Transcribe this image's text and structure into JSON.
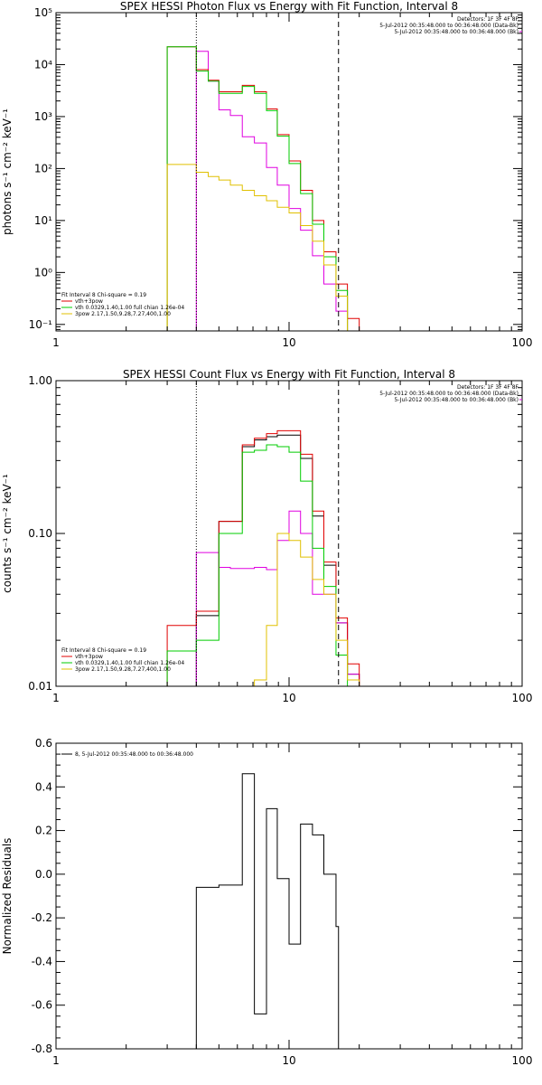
{
  "chart_data": [
    {
      "id": "photon",
      "type": "line",
      "title": "SPEX HESSI Photon Flux vs Energy with Fit Function, Interval 8",
      "xlabel": "",
      "ylabel": "photons s⁻¹ cm⁻² keV⁻¹",
      "xscale": "log",
      "yscale": "log",
      "xlim": [
        1,
        100
      ],
      "ylim": [
        0.075,
        100000
      ],
      "xticks": [
        {
          "v": 1,
          "label": "1"
        },
        {
          "v": 10,
          "label": "10"
        },
        {
          "v": 100,
          "label": "100"
        }
      ],
      "yticks": [
        {
          "v": 0.1,
          "label": "10⁻¹"
        },
        {
          "v": 1,
          "label": "10⁰"
        },
        {
          "v": 10,
          "label": "10¹"
        },
        {
          "v": 100,
          "label": "10²"
        },
        {
          "v": 1000,
          "label": "10³"
        },
        {
          "v": 10000,
          "label": "10⁴"
        },
        {
          "v": 100000,
          "label": "10⁵"
        }
      ],
      "vlines": [
        {
          "x": 4.0,
          "style": "dotted",
          "color": "#000000"
        },
        {
          "x": 16.3,
          "style": "dashed",
          "color": "#000000"
        }
      ],
      "info_lines": [
        "Detectors: 1F 3F 4F 8F",
        "5-Jul-2012 00:35:48.000 to 00:36:48.000 (Data-Bk)",
        "5-Jul-2012 00:35:48.000 to 00:36:48.000 (Bk)"
      ],
      "legend_lines": [
        {
          "text": "Fit Interval 8   Chi-square = 0.19",
          "color": null
        },
        {
          "text": "vth+3pow",
          "color": "#e00000"
        },
        {
          "text": "vth 0.0329,1.40,1.00  full chian 1.26e-04",
          "color": "#00cc00"
        },
        {
          "text": "3pow 2.17,1.50,9.28,7.27,400,1.00",
          "color": "#e0c000"
        }
      ],
      "series": [
        {
          "name": "",
          "color": "#e000e0",
          "bins": [
            [
              4.0,
              4.5,
              18000
            ],
            [
              4.5,
              5.0,
              4800
            ],
            [
              5.0,
              5.6,
              1350
            ],
            [
              5.6,
              6.3,
              1050
            ],
            [
              6.3,
              7.1,
              410
            ],
            [
              7.1,
              8.0,
              310
            ],
            [
              8.0,
              8.9,
              105
            ],
            [
              8.9,
              10.0,
              48
            ],
            [
              10.0,
              11.2,
              17
            ],
            [
              11.2,
              12.6,
              6.5
            ],
            [
              12.6,
              14.1,
              2.1
            ],
            [
              14.1,
              15.9,
              0.6
            ],
            [
              15.9,
              17.8,
              0.18
            ]
          ]
        },
        {
          "name": "vth+3pow",
          "color": "#e00000",
          "bins": [
            [
              3.0,
              4.0,
              22000
            ],
            [
              4.0,
              4.5,
              8000
            ],
            [
              4.5,
              5.0,
              5000
            ],
            [
              5.0,
              5.6,
              3000
            ],
            [
              5.6,
              6.3,
              3000
            ],
            [
              6.3,
              7.1,
              4000
            ],
            [
              7.1,
              8.0,
              3000
            ],
            [
              8.0,
              8.9,
              1400
            ],
            [
              8.9,
              10.0,
              450
            ],
            [
              10.0,
              11.2,
              140
            ],
            [
              11.2,
              12.6,
              38
            ],
            [
              12.6,
              14.1,
              10
            ],
            [
              14.1,
              15.9,
              2.5
            ],
            [
              15.9,
              17.8,
              0.6
            ],
            [
              17.8,
              20.0,
              0.13
            ]
          ]
        },
        {
          "name": "vth",
          "color": "#00cc00",
          "bins": [
            [
              3.0,
              4.0,
              22000
            ],
            [
              4.0,
              4.5,
              7500
            ],
            [
              4.5,
              5.0,
              4800
            ],
            [
              5.0,
              5.6,
              2800
            ],
            [
              5.6,
              6.3,
              2800
            ],
            [
              6.3,
              7.1,
              3800
            ],
            [
              7.1,
              8.0,
              2800
            ],
            [
              8.0,
              8.9,
              1300
            ],
            [
              8.9,
              10.0,
              420
            ],
            [
              10.0,
              11.2,
              125
            ],
            [
              11.2,
              12.6,
              33
            ],
            [
              12.6,
              14.1,
              8.5
            ],
            [
              14.1,
              15.9,
              2.0
            ],
            [
              15.9,
              17.8,
              0.45
            ]
          ]
        },
        {
          "name": "3pow",
          "color": "#e0c000",
          "bins": [
            [
              3.0,
              4.0,
              120
            ],
            [
              4.0,
              4.5,
              85
            ],
            [
              4.5,
              5.0,
              70
            ],
            [
              5.0,
              5.6,
              60
            ],
            [
              5.6,
              6.3,
              48
            ],
            [
              6.3,
              7.1,
              38
            ],
            [
              7.1,
              8.0,
              30
            ],
            [
              8.0,
              8.9,
              24
            ],
            [
              8.9,
              10.0,
              18
            ],
            [
              10.0,
              11.2,
              14
            ],
            [
              11.2,
              12.6,
              8
            ],
            [
              12.6,
              14.1,
              4
            ],
            [
              14.1,
              15.9,
              1.4
            ],
            [
              15.9,
              17.8,
              0.35
            ]
          ]
        }
      ]
    },
    {
      "id": "count",
      "type": "line",
      "title": "SPEX HESSI Count Flux vs Energy with Fit Function, Interval 8",
      "xlabel": "",
      "ylabel": "counts s⁻¹ cm⁻² keV⁻¹",
      "xscale": "log",
      "yscale": "log",
      "xlim": [
        1,
        100
      ],
      "ylim": [
        0.01,
        1.0
      ],
      "xticks": [
        {
          "v": 1,
          "label": "1"
        },
        {
          "v": 10,
          "label": "10"
        },
        {
          "v": 100,
          "label": "100"
        }
      ],
      "yticks": [
        {
          "v": 0.01,
          "label": "0.01"
        },
        {
          "v": 0.1,
          "label": "0.10"
        },
        {
          "v": 1.0,
          "label": "1.00"
        }
      ],
      "vlines": [
        {
          "x": 4.0,
          "style": "dotted",
          "color": "#000000"
        },
        {
          "x": 16.3,
          "style": "dashed",
          "color": "#000000"
        }
      ],
      "info_lines": [
        "Detectors: 1F 3F 4F 8F",
        "5-Jul-2012 00:35:48.000 to 00:36:48.000 (Data-Bk)",
        "5-Jul-2012 00:35:48.000 to 00:36:48.000 (Bk)"
      ],
      "legend_lines": [
        {
          "text": "Fit Interval 8   Chi-square = 0.19",
          "color": null
        },
        {
          "text": "vth+3pow",
          "color": "#e00000"
        },
        {
          "text": "vth 0.0329,1.40,1.00  full chian 1.26e-04",
          "color": "#00cc00"
        },
        {
          "text": "3pow 2.17,1.50,9.28,7.27,400,1.00",
          "color": "#e0c000"
        }
      ],
      "series": [
        {
          "name": "",
          "color": "#000000",
          "bins": [
            [
              4.0,
              4.5,
              0.029
            ],
            [
              4.5,
              5.0,
              0.029
            ],
            [
              5.0,
              5.6,
              0.12
            ],
            [
              5.6,
              6.3,
              0.12
            ],
            [
              6.3,
              7.1,
              0.37
            ],
            [
              7.1,
              8.0,
              0.41
            ],
            [
              8.0,
              8.9,
              0.43
            ],
            [
              8.9,
              10.0,
              0.44
            ],
            [
              10.0,
              11.2,
              0.44
            ],
            [
              11.2,
              12.6,
              0.31
            ],
            [
              12.6,
              14.1,
              0.13
            ],
            [
              14.1,
              15.9,
              0.062
            ],
            [
              15.9,
              17.8,
              0.026
            ],
            [
              17.8,
              20.0,
              0.012
            ]
          ]
        },
        {
          "name": "",
          "color": "#e000e0",
          "bins": [
            [
              4.0,
              4.5,
              0.075
            ],
            [
              4.5,
              5.0,
              0.075
            ],
            [
              5.0,
              5.6,
              0.06
            ],
            [
              5.6,
              6.3,
              0.059
            ],
            [
              6.3,
              7.1,
              0.059
            ],
            [
              7.1,
              8.0,
              0.06
            ],
            [
              8.0,
              8.9,
              0.058
            ],
            [
              8.9,
              10.0,
              0.09
            ],
            [
              10.0,
              11.2,
              0.14
            ],
            [
              11.2,
              12.6,
              0.1
            ],
            [
              12.6,
              14.1,
              0.04
            ],
            [
              14.1,
              15.9,
              0.04
            ],
            [
              15.9,
              17.8,
              0.026
            ],
            [
              17.8,
              20.0,
              0.012
            ]
          ]
        },
        {
          "name": "vth+3pow",
          "color": "#e00000",
          "bins": [
            [
              3.0,
              4.0,
              0.025
            ],
            [
              4.0,
              4.5,
              0.031
            ],
            [
              4.5,
              5.0,
              0.031
            ],
            [
              5.0,
              5.6,
              0.12
            ],
            [
              5.6,
              6.3,
              0.12
            ],
            [
              6.3,
              7.1,
              0.38
            ],
            [
              7.1,
              8.0,
              0.42
            ],
            [
              8.0,
              8.9,
              0.45
            ],
            [
              8.9,
              10.0,
              0.47
            ],
            [
              10.0,
              11.2,
              0.47
            ],
            [
              11.2,
              12.6,
              0.33
            ],
            [
              12.6,
              14.1,
              0.14
            ],
            [
              14.1,
              15.9,
              0.065
            ],
            [
              15.9,
              17.8,
              0.028
            ],
            [
              17.8,
              20.0,
              0.014
            ]
          ]
        },
        {
          "name": "vth",
          "color": "#00cc00",
          "bins": [
            [
              3.0,
              4.0,
              0.017
            ],
            [
              4.0,
              4.5,
              0.02
            ],
            [
              4.5,
              5.0,
              0.02
            ],
            [
              5.0,
              5.6,
              0.1
            ],
            [
              5.6,
              6.3,
              0.1
            ],
            [
              6.3,
              7.1,
              0.34
            ],
            [
              7.1,
              8.0,
              0.35
            ],
            [
              8.0,
              8.9,
              0.38
            ],
            [
              8.9,
              10.0,
              0.37
            ],
            [
              10.0,
              11.2,
              0.34
            ],
            [
              11.2,
              12.6,
              0.22
            ],
            [
              12.6,
              14.1,
              0.08
            ],
            [
              14.1,
              15.9,
              0.045
            ],
            [
              15.9,
              17.8,
              0.016
            ]
          ]
        },
        {
          "name": "3pow",
          "color": "#e0c000",
          "bins": [
            [
              7.1,
              8.0,
              0.011
            ],
            [
              8.0,
              8.9,
              0.025
            ],
            [
              8.9,
              10.0,
              0.1
            ],
            [
              10.0,
              11.2,
              0.09
            ],
            [
              11.2,
              12.6,
              0.07
            ],
            [
              12.6,
              14.1,
              0.05
            ],
            [
              14.1,
              15.9,
              0.04
            ],
            [
              15.9,
              17.8,
              0.02
            ],
            [
              17.8,
              20.0,
              0.011
            ]
          ]
        }
      ]
    },
    {
      "id": "resid",
      "type": "line",
      "title": "",
      "xlabel": "",
      "ylabel": "Normalized Residuals",
      "xscale": "log",
      "yscale": "linear",
      "xlim": [
        1,
        100
      ],
      "ylim": [
        -0.8,
        0.6
      ],
      "xticks": [
        {
          "v": 1,
          "label": "1"
        },
        {
          "v": 10,
          "label": "10"
        },
        {
          "v": 100,
          "label": "100"
        }
      ],
      "yticks": [
        {
          "v": -0.8,
          "label": "-0.8"
        },
        {
          "v": -0.6,
          "label": "-0.6"
        },
        {
          "v": -0.4,
          "label": "-0.4"
        },
        {
          "v": -0.2,
          "label": "-0.2"
        },
        {
          "v": 0.0,
          "label": "0.0"
        },
        {
          "v": 0.2,
          "label": "0.2"
        },
        {
          "v": 0.4,
          "label": "0.4"
        },
        {
          "v": 0.6,
          "label": "0.6"
        }
      ],
      "vlines": [],
      "info_lines": [],
      "legend_lines": [
        {
          "text": "8,  5-Jul-2012 00:35:48.000 to 00:36:48.000",
          "color": "#000000",
          "line": true
        }
      ],
      "series": [
        {
          "name": "8,  5-Jul-2012 00:35:48.000 to 00:36:48.000",
          "color": "#000000",
          "bins": [
            [
              4.0,
              5.0,
              -0.06
            ],
            [
              5.0,
              5.6,
              -0.05
            ],
            [
              5.6,
              6.3,
              -0.05
            ],
            [
              6.3,
              7.1,
              0.46
            ],
            [
              7.1,
              8.0,
              -0.64
            ],
            [
              8.0,
              8.9,
              0.3
            ],
            [
              8.9,
              10.0,
              -0.02
            ],
            [
              10.0,
              11.2,
              -0.32
            ],
            [
              11.2,
              12.6,
              0.23
            ],
            [
              12.6,
              14.1,
              0.18
            ],
            [
              14.1,
              15.9,
              0.0
            ],
            [
              15.9,
              16.3,
              -0.24
            ]
          ]
        }
      ]
    }
  ]
}
